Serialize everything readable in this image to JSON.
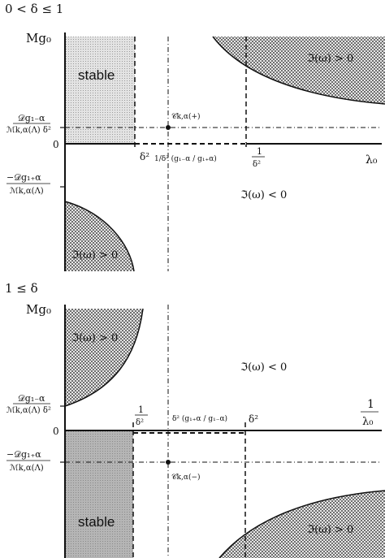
{
  "panel_top": {
    "condition": "0 < δ ≤ 1",
    "y_axis_label": "Mg₀",
    "x_axis_label": "λ₀",
    "stable_label": "stable",
    "region_upper_label": "ℑ(ω) > 0",
    "region_lower_label": "ℑ(ω) > 0",
    "region_middle_label": "ℑ(ω) < 0",
    "y_tick_upper_num": "𝒟g₁₋α",
    "y_tick_upper_den": "ℳk,α(Λ) δ²",
    "y_tick_zero": "0",
    "y_tick_lower_num": "−𝒟g₁₊α",
    "y_tick_lower_den": "ℳk,α(Λ)",
    "x_tick_delta2": "δ²",
    "x_tick_mid": "1/δ² (g₁₋α / g₁₊α)",
    "x_tick_inv_num": "1",
    "x_tick_inv_den": "δ²",
    "point_label": "𝒞k,α(+)"
  },
  "panel_bottom": {
    "condition": "1 ≤ δ",
    "y_axis_label": "Mg₀",
    "x_axis_num": "1",
    "x_axis_den": "λ₀",
    "stable_label": "stable",
    "region_upper_label": "ℑ(ω) > 0",
    "region_lower_label": "ℑ(ω) > 0",
    "region_middle_label": "ℑ(ω) < 0",
    "y_tick_upper_num": "𝒟g₁₋α",
    "y_tick_upper_den": "ℳk,α(Λ) δ²",
    "y_tick_zero": "0",
    "y_tick_lower_num": "−𝒟g₁₊α",
    "y_tick_lower_den": "ℳk,α(Λ)",
    "x_tick_inv_num": "1",
    "x_tick_inv_den": "δ²",
    "x_tick_mid": "δ² (g₁₊α / g₁₋α)",
    "x_tick_delta2": "δ²",
    "point_label": "𝒞k,α(−)"
  },
  "colors": {
    "hatch": "#6f6f6f",
    "stable_fill": "#d9d9d9",
    "stable_fill_dark": "#9a9a9a",
    "axis": "#111111"
  }
}
